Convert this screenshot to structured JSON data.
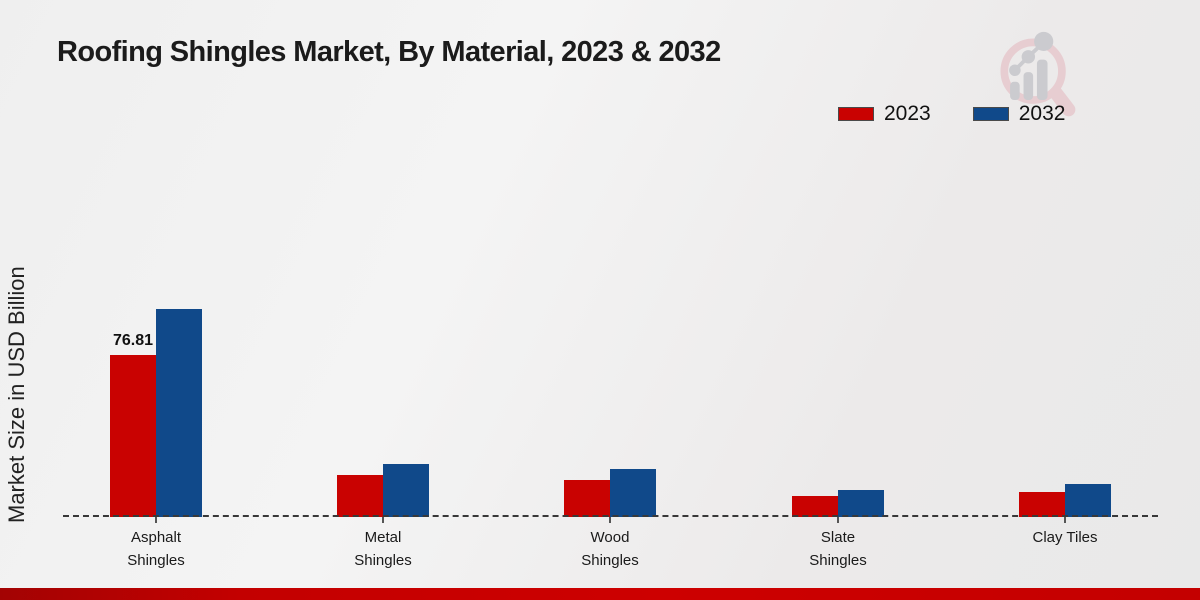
{
  "chart_data": {
    "type": "bar",
    "title": "Roofing Shingles Market, By Material, 2023 & 2032",
    "xlabel": "",
    "ylabel": "Market Size in USD Billion",
    "categories": [
      "Asphalt Shingles",
      "Metal Shingles",
      "Wood Shingles",
      "Slate Shingles",
      "Clay Tiles"
    ],
    "series": [
      {
        "name": "2023",
        "color": "#c90201",
        "values": [
          76.81,
          19.9,
          17.6,
          10.0,
          11.9
        ],
        "value_labels": [
          "76.81",
          null,
          null,
          null,
          null
        ]
      },
      {
        "name": "2032",
        "color": "#10498a",
        "values": [
          98.6,
          25.1,
          22.7,
          12.8,
          15.6
        ],
        "value_labels": [
          null,
          null,
          null,
          null,
          null
        ]
      }
    ],
    "legend_position": "top-right",
    "grid": false,
    "baseline_style": "dashed",
    "ylim": [
      0,
      110
    ]
  },
  "icons": {
    "watermark": "magnifier-growth-chart-logo"
  },
  "footer": {
    "accent_color": "#c40000"
  }
}
